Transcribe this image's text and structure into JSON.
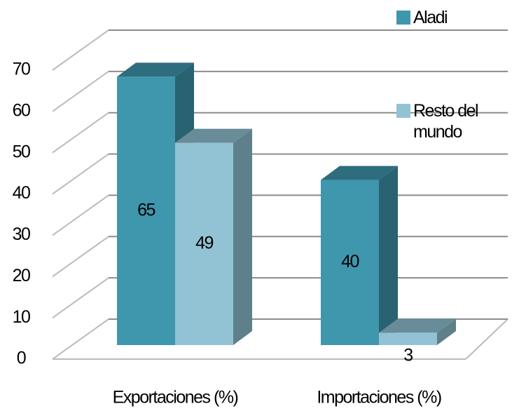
{
  "chart_data": {
    "type": "bar3d",
    "categories": [
      "Exportaciones (%)",
      "Importaciones (%)"
    ],
    "series": [
      {
        "name": "Aladi",
        "color": "#3f97ad",
        "values": [
          65,
          40
        ]
      },
      {
        "name": "Resto del mundo",
        "color": "#92c3d5",
        "values": [
          49,
          3
        ]
      }
    ],
    "ylim": [
      0,
      70
    ],
    "yticks": [
      0,
      10,
      20,
      30,
      40,
      50,
      60,
      70
    ],
    "grid": true,
    "legend": "right"
  }
}
